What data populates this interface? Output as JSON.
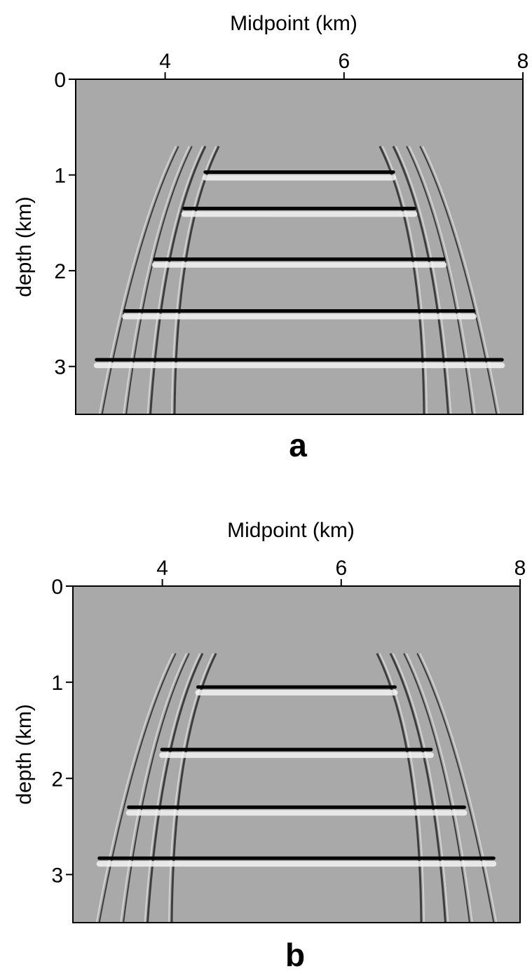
{
  "chart_data": [
    {
      "type": "image",
      "xlabel": "Midpoint (km)",
      "ylabel": "depth (km)",
      "caption": "a",
      "xlim": [
        3,
        8
      ],
      "ylim": [
        0,
        3.5
      ],
      "xticks": [
        4,
        6,
        8
      ],
      "yticks": [
        0,
        1,
        2,
        3
      ],
      "values": [
        0.97,
        1.35,
        1.88,
        2.42,
        2.93
      ]
    },
    {
      "type": "image",
      "xlabel": "Midpoint (km)",
      "ylabel": "depth (km)",
      "caption": "b",
      "xlim": [
        3,
        8
      ],
      "ylim": [
        0,
        3.5
      ],
      "xticks": [
        4,
        6,
        8
      ],
      "yticks": [
        0,
        1,
        2,
        3
      ],
      "values": [
        1.05,
        1.7,
        2.3,
        2.83
      ]
    }
  ]
}
